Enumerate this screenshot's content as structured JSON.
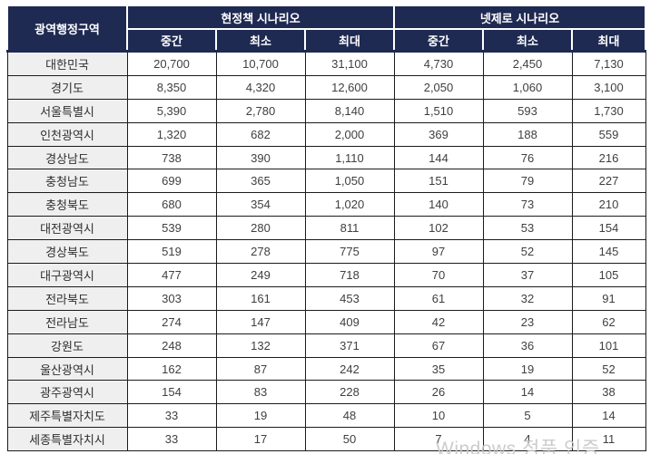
{
  "table": {
    "region_header": "광역행정구역",
    "scenario_groups": [
      {
        "label": "현정책 시나리오",
        "columns": [
          "중간",
          "최소",
          "최대"
        ]
      },
      {
        "label": "넷제로 시나리오",
        "columns": [
          "중간",
          "최소",
          "최대"
        ]
      }
    ],
    "rows": [
      {
        "region": "대한민국",
        "values": [
          "20,700",
          "10,700",
          "31,100",
          "4,730",
          "2,450",
          "7,130"
        ]
      },
      {
        "region": "경기도",
        "values": [
          "8,350",
          "4,320",
          "12,600",
          "2,050",
          "1,060",
          "3,100"
        ]
      },
      {
        "region": "서울특별시",
        "values": [
          "5,390",
          "2,780",
          "8,140",
          "1,510",
          "593",
          "1,730"
        ]
      },
      {
        "region": "인천광역시",
        "values": [
          "1,320",
          "682",
          "2,000",
          "369",
          "188",
          "559"
        ]
      },
      {
        "region": "경상남도",
        "values": [
          "738",
          "390",
          "1,110",
          "144",
          "76",
          "216"
        ]
      },
      {
        "region": "충청남도",
        "values": [
          "699",
          "365",
          "1,050",
          "151",
          "79",
          "227"
        ]
      },
      {
        "region": "충청북도",
        "values": [
          "680",
          "354",
          "1,020",
          "140",
          "73",
          "210"
        ]
      },
      {
        "region": "대전광역시",
        "values": [
          "539",
          "280",
          "811",
          "102",
          "53",
          "154"
        ]
      },
      {
        "region": "경상북도",
        "values": [
          "519",
          "278",
          "775",
          "97",
          "52",
          "145"
        ]
      },
      {
        "region": "대구광역시",
        "values": [
          "477",
          "249",
          "718",
          "70",
          "37",
          "105"
        ]
      },
      {
        "region": "전라북도",
        "values": [
          "303",
          "161",
          "453",
          "61",
          "32",
          "91"
        ]
      },
      {
        "region": "전라남도",
        "values": [
          "274",
          "147",
          "409",
          "42",
          "23",
          "62"
        ]
      },
      {
        "region": "강원도",
        "values": [
          "248",
          "132",
          "371",
          "67",
          "36",
          "101"
        ]
      },
      {
        "region": "울산광역시",
        "values": [
          "162",
          "87",
          "242",
          "35",
          "19",
          "52"
        ]
      },
      {
        "region": "광주광역시",
        "values": [
          "154",
          "83",
          "228",
          "26",
          "14",
          "38"
        ]
      },
      {
        "region": "제주특별자치도",
        "values": [
          "33",
          "19",
          "48",
          "10",
          "5",
          "14"
        ]
      },
      {
        "region": "세종특별자치시",
        "values": [
          "33",
          "17",
          "50",
          "7",
          "4",
          "11"
        ]
      }
    ]
  },
  "watermark": {
    "text": "Windows 정품 인증"
  },
  "colors": {
    "header_bg": "#1f2a52",
    "header_text": "#ffffff",
    "region_cell_bg": "#efefef",
    "body_text": "#3f3f3f",
    "grid_border": "#1b1b1b",
    "watermark_text": "#c7c7c7"
  }
}
